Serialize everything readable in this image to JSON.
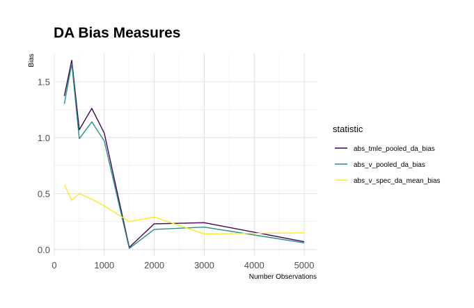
{
  "chart_data": {
    "type": "line",
    "title": "DA Bias Measures",
    "xlabel": "Number Observations",
    "ylabel": "Bias",
    "xlim": [
      0,
      5250
    ],
    "ylim": [
      -0.05,
      1.75
    ],
    "x_ticks": [
      0,
      1000,
      2000,
      3000,
      4000,
      5000
    ],
    "y_ticks": [
      0.0,
      0.5,
      1.0,
      1.5
    ],
    "x_tick_labels": [
      "0",
      "1000",
      "2000",
      "3000",
      "4000",
      "5000"
    ],
    "y_tick_labels": [
      "0.0",
      "0.5",
      "1.0",
      "1.5"
    ],
    "grid": true,
    "legend_title": "statistic",
    "legend_position": "right",
    "x": [
      200,
      350,
      500,
      750,
      1000,
      1500,
      2000,
      3000,
      5000
    ],
    "series": [
      {
        "name": "abs_tmle_pooled_da_bias",
        "color": "#440154",
        "values": [
          1.37,
          1.69,
          1.07,
          1.26,
          1.04,
          0.02,
          0.23,
          0.24,
          0.07
        ]
      },
      {
        "name": "abs_v_pooled_da_bias",
        "color": "#21908C",
        "values": [
          1.3,
          1.66,
          0.99,
          1.14,
          0.97,
          0.01,
          0.18,
          0.2,
          0.06
        ]
      },
      {
        "name": "abs_v_spec_da_mean_bias",
        "color": "#FDE725",
        "values": [
          0.58,
          0.44,
          0.5,
          0.45,
          0.39,
          0.25,
          0.29,
          0.14,
          0.15
        ]
      }
    ]
  }
}
